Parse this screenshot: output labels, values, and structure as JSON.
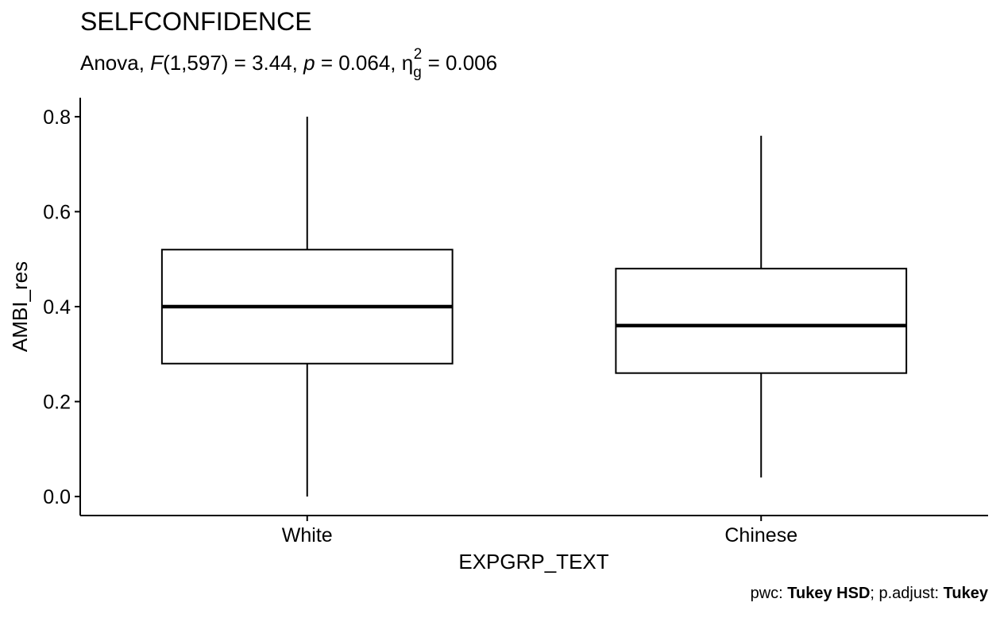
{
  "chart_data": {
    "type": "box",
    "title": "SELFCONFIDENCE",
    "subtitle": {
      "prefix": "Anova, ",
      "stat": "F",
      "df": "(1,597) = 3.44, ",
      "p_symbol": "p",
      "p_value": " = 0.064, ",
      "eta": "η",
      "eta_sup": "2",
      "eta_sub": "g",
      "eta_value": " = 0.006"
    },
    "xlabel": "EXPGRP_TEXT",
    "ylabel": "AMBI_res",
    "ylim": [
      -0.04,
      0.84
    ],
    "yticks": [
      0.0,
      0.2,
      0.4,
      0.6,
      0.8
    ],
    "ytick_labels": [
      "0.0",
      "0.2",
      "0.4",
      "0.6",
      "0.8"
    ],
    "categories": [
      "White",
      "Chinese"
    ],
    "boxes": [
      {
        "category": "White",
        "min": 0.0,
        "q1": 0.28,
        "median": 0.4,
        "q3": 0.52,
        "max": 0.8
      },
      {
        "category": "Chinese",
        "min": 0.04,
        "q1": 0.26,
        "median": 0.36,
        "q3": 0.48,
        "max": 0.76
      }
    ],
    "grid": false,
    "caption": {
      "pwc_label": "pwc: ",
      "pwc_value": "Tukey HSD",
      "sep": "; p.adjust: ",
      "adjust_value": "Tukey"
    }
  }
}
